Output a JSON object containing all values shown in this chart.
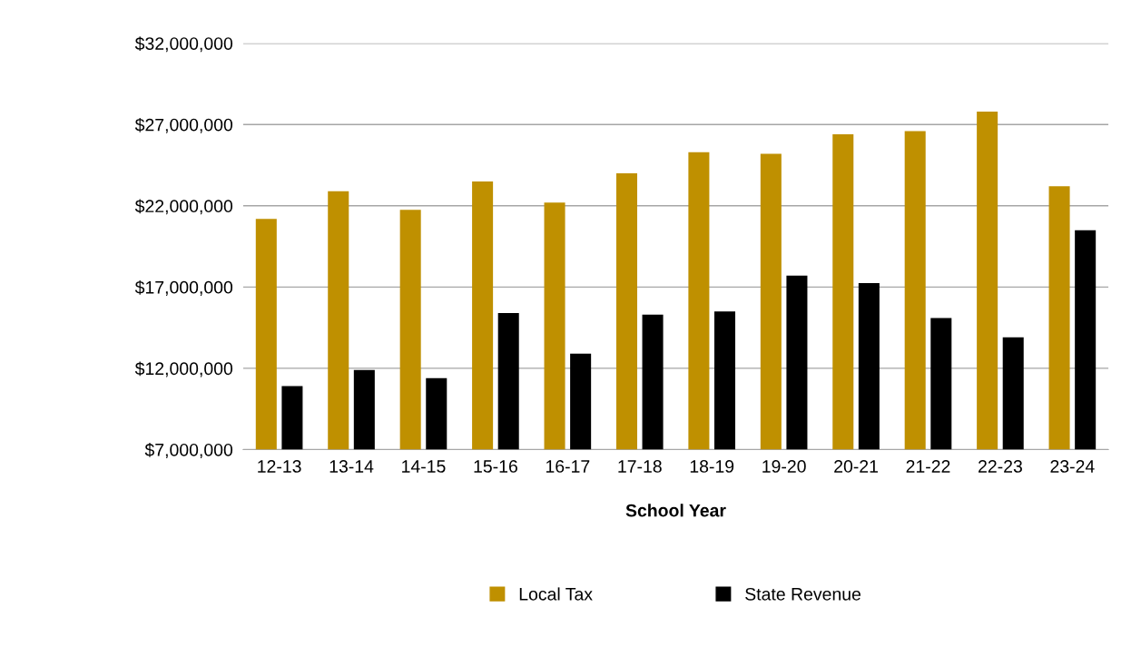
{
  "chart_data": {
    "type": "bar",
    "xlabel": "School Year",
    "categories": [
      "12-13",
      "13-14",
      "14-15",
      "15-16",
      "16-17",
      "17-18",
      "18-19",
      "19-20",
      "20-21",
      "21-22",
      "22-23",
      "23-24"
    ],
    "series": [
      {
        "name": "Local Tax",
        "color": "#bf9000",
        "values": [
          21200000,
          22900000,
          21750000,
          23500000,
          22200000,
          24000000,
          25300000,
          25200000,
          26400000,
          26600000,
          27800000,
          23200000
        ]
      },
      {
        "name": "State Revenue",
        "color": "#000000",
        "values": [
          10900000,
          11900000,
          11400000,
          15400000,
          12900000,
          15300000,
          15500000,
          17700000,
          17250000,
          15100000,
          13900000,
          20500000
        ]
      }
    ],
    "ylim": [
      7000000,
      32000000
    ],
    "yticks": [
      {
        "value": 7000000,
        "label": "$7,000,000"
      },
      {
        "value": 12000000,
        "label": "$12,000,000"
      },
      {
        "value": 17000000,
        "label": "$17,000,000"
      },
      {
        "value": 22000000,
        "label": "$22,000,000"
      },
      {
        "value": 27000000,
        "label": "$27,000,000"
      },
      {
        "value": 32000000,
        "label": "$32,000,000"
      }
    ],
    "grid": "y",
    "legend": "bottom"
  }
}
